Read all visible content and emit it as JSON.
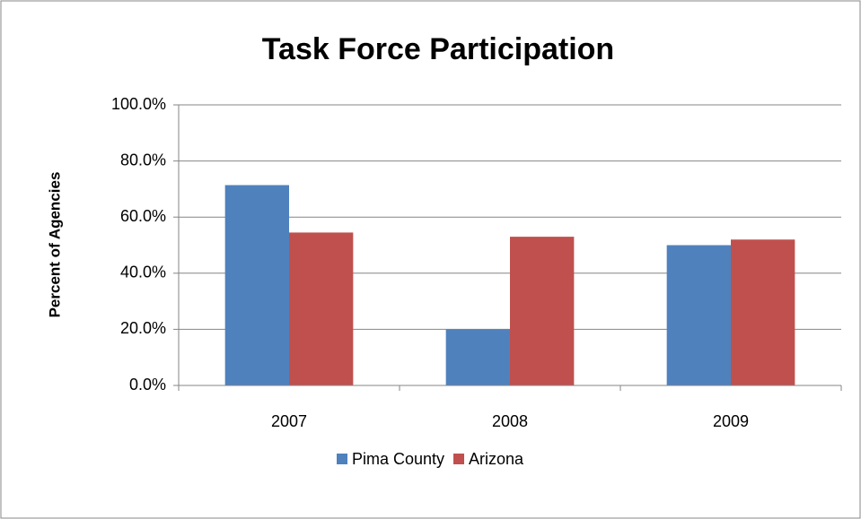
{
  "chart_data": {
    "type": "bar",
    "title": "Task Force Participation",
    "y_label": "Percent of Agencies",
    "categories": [
      "2007",
      "2008",
      "2009"
    ],
    "series": [
      {
        "name": "Pima County",
        "color": "#4f81bd",
        "values": [
          71.4,
          20.0,
          50.0
        ]
      },
      {
        "name": "Arizona",
        "color": "#c0504d",
        "values": [
          54.5,
          53.0,
          52.0
        ]
      }
    ],
    "ylim": [
      0,
      100
    ],
    "yticks": [
      {
        "value": 0,
        "label": "0.0%"
      },
      {
        "value": 20,
        "label": "20.0%"
      },
      {
        "value": 40,
        "label": "40.0%"
      },
      {
        "value": 60,
        "label": "60.0%"
      },
      {
        "value": 80,
        "label": "80.0%"
      },
      {
        "value": 100,
        "label": "100.0%"
      }
    ],
    "grid": true,
    "legend": "bottom"
  }
}
